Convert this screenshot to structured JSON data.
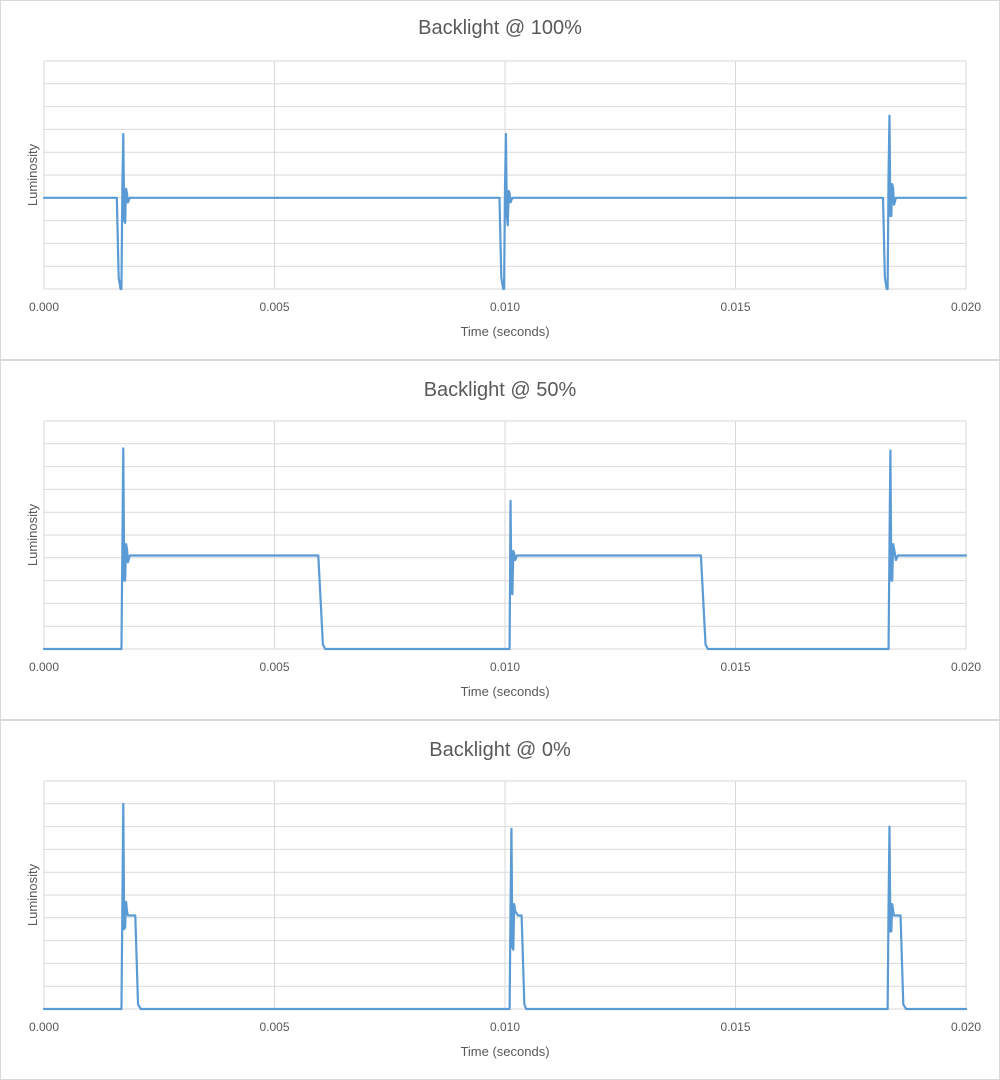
{
  "chart_data": [
    {
      "type": "line",
      "title": "Backlight @ 100%",
      "xlabel": "Time (seconds)",
      "ylabel": "Luminosity",
      "xlim": [
        0,
        0.02
      ],
      "x_ticks": [
        "0.000",
        "0.005",
        "0.010",
        "0.015",
        "0.020"
      ],
      "ylim": [
        0,
        10
      ],
      "grid": true,
      "y_tick_labels_shown": false,
      "color": "#5b9bd5",
      "series": [
        {
          "x": [
            0,
            0.00158,
            0.00162,
            0.00166,
            0.00168,
            0.0017,
            0.00172,
            0.00174,
            0.00176,
            0.00178,
            0.0018,
            0.00182,
            0.00186,
            0.0019,
            0.0095,
            0.00988,
            0.00992,
            0.00996,
            0.00998,
            0.01,
            0.01002,
            0.01004,
            0.01006,
            0.01008,
            0.0101,
            0.01012,
            0.01016,
            0.0102,
            0.0181,
            0.0182,
            0.01824,
            0.01828,
            0.0183,
            0.01832,
            0.01834,
            0.01836,
            0.01838,
            0.0184,
            0.01842,
            0.01844,
            0.01848,
            0.01852,
            0.02
          ],
          "y": [
            4.0,
            4.0,
            0.5,
            0.0,
            0.0,
            4.5,
            6.8,
            3.0,
            2.9,
            4.4,
            4.2,
            3.8,
            4.0,
            4.0,
            4.0,
            4.0,
            0.5,
            0.0,
            0.0,
            4.5,
            6.8,
            3.2,
            2.8,
            4.3,
            4.2,
            3.8,
            4.0,
            4.0,
            4.0,
            4.0,
            0.5,
            0.0,
            0.0,
            5.0,
            7.6,
            3.2,
            3.2,
            4.6,
            4.4,
            3.7,
            4.0,
            4.0,
            4.0
          ]
        }
      ]
    },
    {
      "type": "line",
      "title": "Backlight @ 50%",
      "xlabel": "Time (seconds)",
      "ylabel": "Luminosity",
      "xlim": [
        0,
        0.02
      ],
      "x_ticks": [
        "0.000",
        "0.005",
        "0.010",
        "0.015",
        "0.020"
      ],
      "ylim": [
        0,
        10
      ],
      "grid": true,
      "y_tick_labels_shown": false,
      "color": "#5b9bd5",
      "series": [
        {
          "x": [
            0,
            0.00168,
            0.0017,
            0.00172,
            0.00174,
            0.00176,
            0.00178,
            0.0018,
            0.00182,
            0.00186,
            0.0019,
            0.00595,
            0.00605,
            0.0061,
            0.0101,
            0.01012,
            0.01014,
            0.01016,
            0.01018,
            0.0102,
            0.01022,
            0.01026,
            0.0103,
            0.01425,
            0.01435,
            0.0144,
            0.01832,
            0.01834,
            0.01836,
            0.01838,
            0.0184,
            0.01842,
            0.01844,
            0.01848,
            0.01852,
            0.02
          ],
          "y": [
            0.0,
            0.0,
            4.5,
            8.8,
            3.0,
            3.0,
            4.6,
            4.4,
            3.8,
            4.1,
            4.1,
            4.1,
            0.2,
            0.0,
            0.0,
            6.5,
            2.5,
            2.4,
            4.3,
            4.2,
            3.9,
            4.1,
            4.1,
            4.1,
            0.2,
            0.0,
            0.0,
            4.5,
            8.7,
            3.0,
            3.0,
            4.6,
            4.4,
            3.9,
            4.1,
            4.1
          ]
        }
      ]
    },
    {
      "type": "line",
      "title": "Backlight @ 0%",
      "xlabel": "Time (seconds)",
      "ylabel": "Luminosity",
      "xlim": [
        0,
        0.02
      ],
      "x_ticks": [
        "0.000",
        "0.005",
        "0.010",
        "0.015",
        "0.020"
      ],
      "ylim": [
        0,
        10
      ],
      "grid": true,
      "y_tick_labels_shown": false,
      "color": "#5b9bd5",
      "series": [
        {
          "x": [
            0,
            0.00168,
            0.0017,
            0.00172,
            0.00174,
            0.00176,
            0.00178,
            0.0018,
            0.00182,
            0.00188,
            0.00198,
            0.00204,
            0.0021,
            0.0101,
            0.01012,
            0.01014,
            0.01016,
            0.01018,
            0.0102,
            0.01022,
            0.01028,
            0.01036,
            0.01042,
            0.01046,
            0.0183,
            0.01832,
            0.01834,
            0.01836,
            0.01838,
            0.0184,
            0.01842,
            0.01844,
            0.0185,
            0.01858,
            0.01864,
            0.0187,
            0.02
          ],
          "y": [
            0.0,
            0.0,
            4.5,
            9.0,
            3.5,
            3.6,
            4.7,
            4.3,
            4.1,
            4.1,
            4.1,
            0.2,
            0.0,
            0.0,
            4.5,
            7.9,
            2.7,
            2.6,
            4.6,
            4.3,
            4.1,
            4.1,
            0.2,
            0.0,
            0.0,
            4.5,
            8.0,
            3.4,
            3.4,
            4.6,
            4.3,
            4.1,
            4.1,
            4.1,
            0.2,
            0.0,
            0.0
          ]
        }
      ]
    }
  ]
}
